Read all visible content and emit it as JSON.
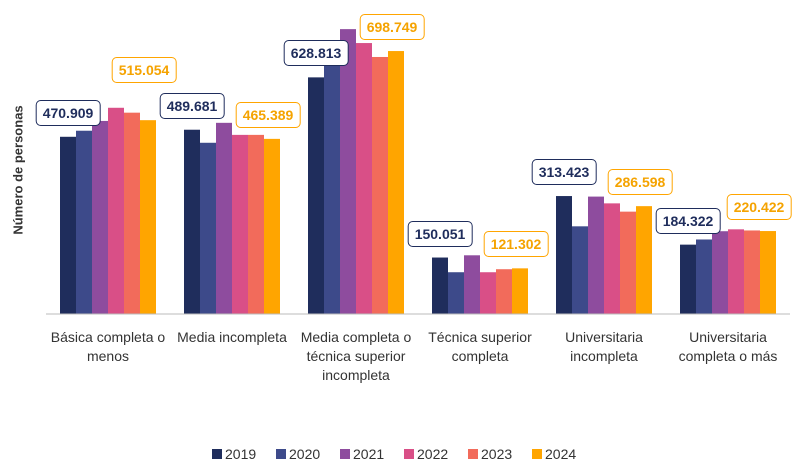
{
  "chart_data": {
    "type": "bar",
    "y_label": "Número de personas",
    "categories": [
      "Básica completa o menos",
      "Media incompleta",
      "Media completa o técnica superior incompleta",
      "Técnica superior completa",
      "Universitaria incompleta",
      "Universitaria completa o más"
    ],
    "series": [
      {
        "name": "2019",
        "color": "#1f2d5c",
        "values": [
          470909,
          489681,
          628813,
          150051,
          313423,
          184322
        ],
        "value_labels": [
          "470.909",
          "489.681",
          "628.813",
          "150.051",
          "313.423",
          "184.322"
        ]
      },
      {
        "name": "2020",
        "color": "#3d4a8a",
        "values": [
          487000,
          455000,
          662000,
          111000,
          233000,
          198000
        ]
      },
      {
        "name": "2021",
        "color": "#8e4c9e",
        "values": [
          513000,
          508000,
          757000,
          156000,
          312000,
          220000
        ]
      },
      {
        "name": "2022",
        "color": "#d94f87",
        "values": [
          548000,
          476000,
          720000,
          111000,
          294000,
          225000
        ]
      },
      {
        "name": "2023",
        "color": "#f26b5b",
        "values": [
          535000,
          476000,
          683000,
          119000,
          272000,
          222000
        ]
      },
      {
        "name": "2024",
        "color": "#ffa500",
        "values": [
          515054,
          465389,
          698749,
          121302,
          286598,
          220422
        ],
        "value_labels": [
          "515.054",
          "465.389",
          "698.749",
          "121.302",
          "286.598",
          "220.422"
        ]
      }
    ],
    "ylim": [
      0,
      760000
    ]
  }
}
